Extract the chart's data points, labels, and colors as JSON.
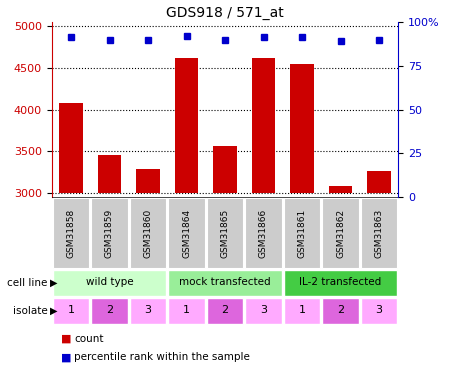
{
  "title": "GDS918 / 571_at",
  "samples": [
    "GSM31858",
    "GSM31859",
    "GSM31860",
    "GSM31864",
    "GSM31865",
    "GSM31866",
    "GSM31861",
    "GSM31862",
    "GSM31863"
  ],
  "counts": [
    4080,
    3450,
    3280,
    4620,
    3560,
    4620,
    4550,
    3080,
    3260
  ],
  "percentile_y": [
    4870,
    4840,
    4840,
    4880,
    4840,
    4870,
    4870,
    4820,
    4840
  ],
  "ylim_left": [
    2950,
    5050
  ],
  "ylim_right": [
    0,
    100
  ],
  "yticks_left": [
    3000,
    3500,
    4000,
    4500,
    5000
  ],
  "yticks_right": [
    0,
    25,
    50,
    75,
    100
  ],
  "bar_color": "#cc0000",
  "dot_color": "#0000cc",
  "cell_line_groups": [
    {
      "label": "wild type",
      "start": 0,
      "end": 3,
      "color": "#ccffcc"
    },
    {
      "label": "mock transfected",
      "start": 3,
      "end": 6,
      "color": "#99ee99"
    },
    {
      "label": "IL-2 transfected",
      "start": 6,
      "end": 9,
      "color": "#44cc44"
    }
  ],
  "isolates": [
    "1",
    "2",
    "3",
    "1",
    "2",
    "3",
    "1",
    "2",
    "3"
  ],
  "iso_colors": [
    "#ffaaff",
    "#dd66dd",
    "#ffaaff",
    "#ffaaff",
    "#dd66dd",
    "#ffaaff",
    "#ffaaff",
    "#dd66dd",
    "#ffaaff"
  ],
  "label_count": "count",
  "label_percentile": "percentile rank within the sample",
  "left_tick_color": "#cc0000",
  "right_tick_color": "#0000cc",
  "sample_bg_color": "#cccccc",
  "bar_width": 0.6
}
